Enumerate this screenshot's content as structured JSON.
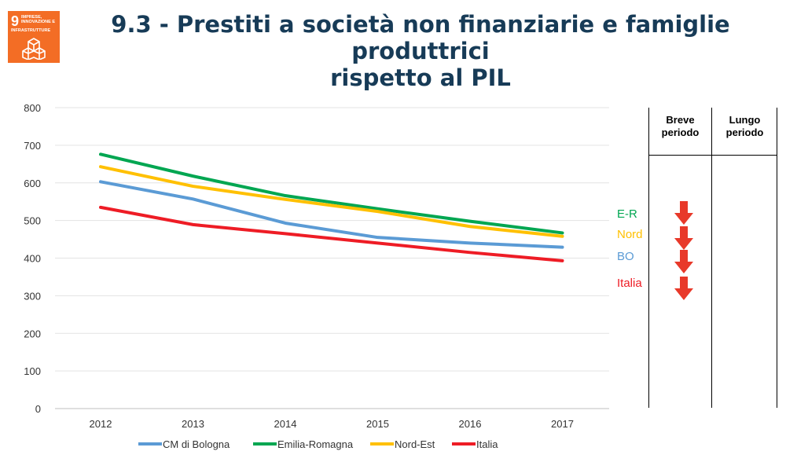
{
  "header": {
    "title_line1": "9.3 - Prestiti a società non finanziarie e famiglie produttrici",
    "title_line2": "rispetto al PIL",
    "sdg_badge": {
      "number": "9",
      "text": "IMPRESE, INNOVAZIONE E INFRASTRUTTURE",
      "color": "#F36D25",
      "icon": "cube-stack-icon"
    }
  },
  "chart_data": {
    "type": "line",
    "title": "",
    "xlabel": "",
    "ylabel": "",
    "categories": [
      "2012",
      "2013",
      "2014",
      "2015",
      "2016",
      "2017"
    ],
    "ylim": [
      0,
      800
    ],
    "yticks": [
      0,
      100,
      200,
      300,
      400,
      500,
      600,
      700,
      800
    ],
    "grid": true,
    "legend_position": "bottom",
    "series": [
      {
        "name": "CM di Bologna",
        "color": "#5B9BD5",
        "values": [
          603,
          557,
          493,
          455,
          440,
          429
        ]
      },
      {
        "name": "Emilia-Romagna",
        "color": "#00A651",
        "values": [
          676,
          618,
          566,
          531,
          498,
          467
        ]
      },
      {
        "name": "Nord-Est",
        "color": "#FFC000",
        "values": [
          643,
          591,
          556,
          524,
          484,
          458
        ]
      },
      {
        "name": "Italia",
        "color": "#EE1C25",
        "values": [
          535,
          489,
          465,
          440,
          415,
          393
        ]
      }
    ]
  },
  "indicators": {
    "col_short": "Breve\nperiodo",
    "col_long": "Lungo\nperiodo",
    "rows": [
      {
        "label": "E-R",
        "color": "#00A651",
        "trend": "down-arrow-icon",
        "arrow_color": "#E8392A"
      },
      {
        "label": "Nord",
        "color": "#FFC000",
        "trend": "down-arrow-icon",
        "arrow_color": "#E8392A"
      },
      {
        "label": "BO",
        "color": "#5B9BD5",
        "trend": "down-arrow-icon",
        "arrow_color": "#E8392A"
      },
      {
        "label": "Italia",
        "color": "#EE1C25",
        "trend": "down-arrow-icon",
        "arrow_color": "#E8392A"
      }
    ]
  }
}
